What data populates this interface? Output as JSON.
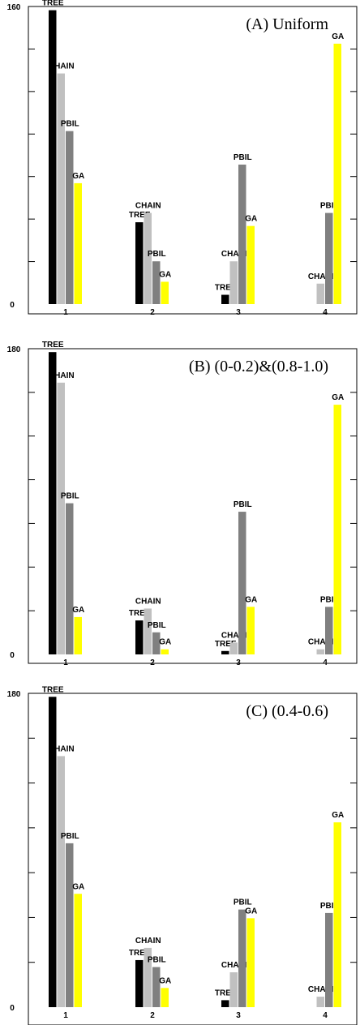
{
  "chart_data": [
    {
      "type": "bar",
      "title": "(A) Uniform",
      "categories": [
        "1",
        "2",
        "3",
        "4"
      ],
      "ylim": [
        0,
        160
      ],
      "y_tick_labels": [
        "0",
        "160"
      ],
      "series": [
        {
          "name": "TREE",
          "color": "#000000",
          "values": [
            158,
            44,
            5,
            0
          ]
        },
        {
          "name": "CHAIN",
          "color": "#c0c0c0",
          "values": [
            124,
            49,
            23,
            11
          ]
        },
        {
          "name": "PBIL",
          "color": "#808080",
          "values": [
            93,
            23,
            75,
            49
          ]
        },
        {
          "name": "GA",
          "color": "#ffff00",
          "values": [
            65,
            12,
            42,
            140
          ]
        }
      ],
      "bar_labels": [
        [
          "TREE",
          "TREE",
          "TREE",
          ""
        ],
        [
          "CHAIN",
          "CHAIN",
          "CHAIN",
          "CHAIN"
        ],
        [
          "PBIL",
          "PBIL",
          "PBIL",
          "PBIL"
        ],
        [
          "GA",
          "GA",
          "GA",
          "GA"
        ]
      ]
    },
    {
      "type": "bar",
      "title": "(B) (0-0.2)&(0.8-1.0)",
      "categories": [
        "1",
        "2",
        "3",
        "4"
      ],
      "ylim": [
        0,
        180
      ],
      "y_tick_labels": [
        "0",
        "180"
      ],
      "series": [
        {
          "name": "TREE",
          "color": "#000000",
          "values": [
            178,
            20,
            2,
            0
          ]
        },
        {
          "name": "CHAIN",
          "color": "#c0c0c0",
          "values": [
            160,
            27,
            7,
            3
          ]
        },
        {
          "name": "PBIL",
          "color": "#808080",
          "values": [
            89,
            13,
            84,
            28
          ]
        },
        {
          "name": "GA",
          "color": "#ffff00",
          "values": [
            22,
            3,
            28,
            147
          ]
        }
      ],
      "bar_labels": [
        [
          "TREE",
          "TREE",
          "TREE",
          ""
        ],
        [
          "CHAIN",
          "CHAIN",
          "CHAIN",
          "CHAIN"
        ],
        [
          "PBIL",
          "PBIL",
          "PBIL",
          "PBIL"
        ],
        [
          "GA",
          "GA",
          "GA",
          "GA"
        ]
      ]
    },
    {
      "type": "bar",
      "title": "(C) (0.4-0.6)",
      "categories": [
        "1",
        "2",
        "3",
        "4"
      ],
      "ylim": [
        0,
        180
      ],
      "y_tick_labels": [
        "0",
        "180"
      ],
      "series": [
        {
          "name": "TREE",
          "color": "#000000",
          "values": [
            178,
            27,
            4,
            0
          ]
        },
        {
          "name": "CHAIN",
          "color": "#c0c0c0",
          "values": [
            144,
            34,
            20,
            6
          ]
        },
        {
          "name": "PBIL",
          "color": "#808080",
          "values": [
            94,
            23,
            56,
            54
          ]
        },
        {
          "name": "GA",
          "color": "#ffff00",
          "values": [
            65,
            11,
            51,
            106
          ]
        }
      ],
      "bar_labels": [
        [
          "TREE",
          "TREE",
          "TREE",
          ""
        ],
        [
          "CHAIN",
          "CHAIN",
          "CHAIN",
          "CHAIN"
        ],
        [
          "PBIL",
          "PBIL",
          "PBIL",
          "PBIL"
        ],
        [
          "GA",
          "GA",
          "GA",
          "GA"
        ]
      ]
    }
  ]
}
